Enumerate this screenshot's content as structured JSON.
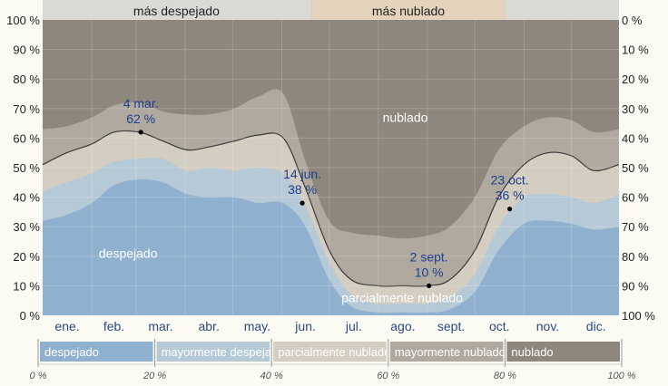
{
  "chart_data": {
    "type": "area",
    "months": [
      "ene.",
      "feb.",
      "mar.",
      "abr.",
      "may.",
      "jun.",
      "jul.",
      "ago.",
      "sept.",
      "oct.",
      "nov.",
      "dic."
    ],
    "x_days": [
      1,
      16,
      32,
      46,
      62,
      77,
      92,
      106,
      122,
      137,
      153,
      167,
      182,
      196,
      213,
      228,
      244,
      258,
      274,
      289,
      305,
      320,
      335,
      349,
      365
    ],
    "y_left_ticks": [
      "0 %",
      "10 %",
      "20 %",
      "30 %",
      "40 %",
      "50 %",
      "60 %",
      "70 %",
      "80 %",
      "90 %",
      "100 %"
    ],
    "y_right_ticks": [
      "100 %",
      "90 %",
      "80 %",
      "70 %",
      "60 %",
      "50 %",
      "40 %",
      "30 %",
      "20 %",
      "10 %",
      "0 %"
    ],
    "ylim": [
      0,
      100
    ],
    "series": [
      {
        "name": "despejado",
        "color": "#8fb0cf",
        "values": [
          32,
          34,
          38,
          44,
          46,
          45,
          41,
          40,
          40,
          38,
          38,
          30,
          12,
          3,
          1,
          1,
          1,
          2,
          8,
          22,
          31,
          32,
          31,
          29,
          30
        ]
      },
      {
        "name": "mayormente despejado",
        "color": "#b6c9d7",
        "values": [
          42,
          45,
          48,
          52,
          53,
          53,
          49,
          50,
          49,
          50,
          48,
          37,
          18,
          7,
          4,
          4,
          4,
          6,
          14,
          30,
          40,
          41,
          40,
          38,
          41
        ]
      },
      {
        "name": "parcialmente nublado",
        "color": "#d4cdc1",
        "values": [
          51,
          55,
          58,
          62,
          62,
          59,
          56,
          57,
          59,
          61,
          60,
          43,
          22,
          12,
          10,
          10,
          10,
          12,
          22,
          40,
          51,
          55,
          54,
          49,
          51
        ]
      },
      {
        "name": "mayormente nublado",
        "color": "#b0a99f",
        "values": [
          63,
          64,
          67,
          71,
          72,
          69,
          68,
          68,
          70,
          74,
          75,
          52,
          32,
          28,
          27,
          26,
          27,
          30,
          40,
          56,
          64,
          67,
          66,
          62,
          63
        ]
      }
    ],
    "top_bands": [
      {
        "label": "más despejado",
        "from_day": 1,
        "to_day": 170,
        "color": "#d9d9d5"
      },
      {
        "label": "más nublado",
        "from_day": 170,
        "to_day": 294,
        "color": "#e3d2bc"
      },
      {
        "label": "",
        "from_day": 294,
        "to_day": 365,
        "color": "#d9d9d5"
      }
    ],
    "annotations": [
      {
        "date": "4 mar.",
        "value_label": "62 %",
        "day": 63,
        "value": 62
      },
      {
        "date": "14 jun.",
        "value_label": "38 %",
        "day": 165,
        "value": 38
      },
      {
        "date": "2 sept.",
        "value_label": "10 %",
        "day": 245,
        "value": 10
      },
      {
        "date": "23 oct.",
        "value_label": "36 %",
        "day": 296,
        "value": 36
      }
    ],
    "region_labels": [
      {
        "text": "nublado",
        "day": 230,
        "value": 67
      },
      {
        "text": "despejado",
        "day": 55,
        "value": 21
      },
      {
        "text": "parcialmente nublado",
        "day": 228,
        "value": 6
      }
    ],
    "legend": {
      "items": [
        {
          "label": "despejado",
          "color": "#8fb0cf",
          "from_pct": 0,
          "to_pct": 20
        },
        {
          "label": "mayormente despejado",
          "color": "#b6c9d7",
          "from_pct": 20,
          "to_pct": 40
        },
        {
          "label": "parcialmente nublado",
          "color": "#d4cdc1",
          "from_pct": 40,
          "to_pct": 60
        },
        {
          "label": "mayormente nublado",
          "color": "#b0a99f",
          "from_pct": 60,
          "to_pct": 80
        },
        {
          "label": "nublado",
          "color": "#8e877d",
          "from_pct": 80,
          "to_pct": 100
        }
      ],
      "pct_labels": [
        "0 %",
        "20 %",
        "40 %",
        "60 %",
        "80 %",
        "100 %"
      ]
    },
    "overcast_color": "#8e877d"
  }
}
